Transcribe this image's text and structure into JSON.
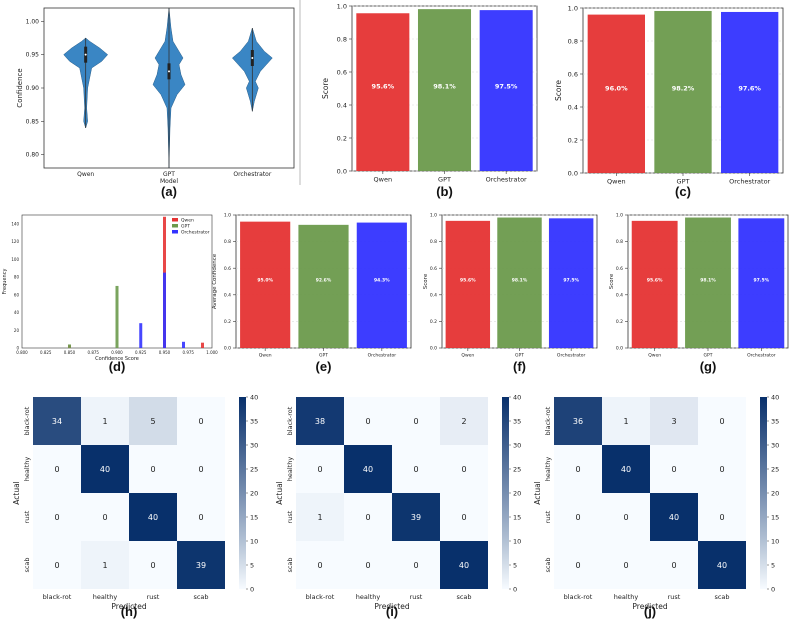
{
  "panels": {
    "a": {
      "label": "(a)",
      "chart_data": {
        "type": "violin",
        "categories": [
          "Qwen",
          "GPT",
          "Orchestrator"
        ],
        "xlabel": "Model",
        "ylabel": "Confidence",
        "ylim": [
          0.78,
          1.02
        ],
        "yticks": [
          "0.80",
          "0.85",
          "0.90",
          "0.95",
          "1.00"
        ],
        "medians": [
          0.95,
          0.925,
          0.945
        ],
        "ranges": [
          [
            0.84,
            0.975
          ],
          [
            0.78,
            1.02
          ],
          [
            0.865,
            0.99
          ]
        ]
      }
    },
    "b": {
      "label": "(b)",
      "chart_data": {
        "type": "bar",
        "categories": [
          "Qwen",
          "GPT",
          "Orchestrator"
        ],
        "values": [
          0.956,
          0.981,
          0.975
        ],
        "data_labels": [
          "95.6%",
          "98.1%",
          "97.5%"
        ],
        "colors": [
          "#e53333",
          "#6c9a4c",
          "#3333ff"
        ],
        "ylabel": "Score",
        "ylim": [
          0,
          1.0
        ],
        "yticks": [
          "0.0",
          "0.2",
          "0.4",
          "0.6",
          "0.8",
          "1.0"
        ]
      }
    },
    "c": {
      "label": "(c)",
      "chart_data": {
        "type": "bar",
        "categories": [
          "Qwen",
          "GPT",
          "Orchestrator"
        ],
        "values": [
          0.96,
          0.982,
          0.976
        ],
        "data_labels": [
          "96.0%",
          "98.2%",
          "97.6%"
        ],
        "colors": [
          "#e53333",
          "#6c9a4c",
          "#3333ff"
        ],
        "ylabel": "Score",
        "ylim": [
          0,
          1.0
        ],
        "yticks": [
          "0.0",
          "0.2",
          "0.4",
          "0.6",
          "0.8",
          "1.0"
        ]
      }
    },
    "d": {
      "label": "(d)",
      "chart_data": {
        "type": "histogram",
        "xlabel": "Confidence Score",
        "ylabel": "Frequency",
        "xlim": [
          0.8,
          1.0
        ],
        "ylim": [
          0,
          150
        ],
        "xticks": [
          "0.800",
          "0.825",
          "0.850",
          "0.875",
          "0.900",
          "0.925",
          "0.950",
          "0.975",
          "1.000"
        ],
        "yticks": [
          "0",
          "20",
          "40",
          "60",
          "80",
          "100",
          "120",
          "140"
        ],
        "series": [
          {
            "name": "Qwen",
            "color": "#e53333",
            "x": [
              0.85,
              0.95,
              0.99
            ],
            "values": [
              3,
              148,
              6
            ]
          },
          {
            "name": "GPT",
            "color": "#6c9a4c",
            "x": [
              0.85,
              0.9
            ],
            "values": [
              4,
              70
            ]
          },
          {
            "name": "Orchestrator",
            "color": "#3333ff",
            "x": [
              0.925,
              0.95,
              0.97
            ],
            "values": [
              28,
              85,
              7
            ]
          }
        ]
      }
    },
    "e": {
      "label": "(e)",
      "chart_data": {
        "type": "bar",
        "categories": [
          "Qwen",
          "GPT",
          "Orchestrator"
        ],
        "values": [
          0.95,
          0.926,
          0.943
        ],
        "data_labels": [
          "95.0%",
          "92.6%",
          "94.3%"
        ],
        "colors": [
          "#e53333",
          "#6c9a4c",
          "#3333ff"
        ],
        "ylabel": "Average Confidence",
        "ylim": [
          0,
          1.0
        ],
        "yticks": [
          "0.0",
          "0.2",
          "0.4",
          "0.6",
          "0.8",
          "1.0"
        ]
      }
    },
    "f": {
      "label": "(f)",
      "chart_data": {
        "type": "bar",
        "categories": [
          "Qwen",
          "GPT",
          "Orchestrator"
        ],
        "values": [
          0.956,
          0.981,
          0.975
        ],
        "data_labels": [
          "95.6%",
          "98.1%",
          "97.5%"
        ],
        "colors": [
          "#e53333",
          "#6c9a4c",
          "#3333ff"
        ],
        "ylabel": "Score",
        "ylim": [
          0,
          1.0
        ],
        "yticks": [
          "0.0",
          "0.2",
          "0.4",
          "0.6",
          "0.8",
          "1.0"
        ]
      }
    },
    "g": {
      "label": "(g)",
      "chart_data": {
        "type": "bar",
        "categories": [
          "Qwen",
          "GPT",
          "Orchestrator"
        ],
        "values": [
          0.956,
          0.981,
          0.975
        ],
        "data_labels": [
          "95.6%",
          "98.1%",
          "97.5%"
        ],
        "colors": [
          "#e53333",
          "#6c9a4c",
          "#3333ff"
        ],
        "ylabel": "Score",
        "ylim": [
          0,
          1.0
        ],
        "yticks": [
          "0.0",
          "0.2",
          "0.4",
          "0.6",
          "0.8",
          "1.0"
        ]
      }
    },
    "h": {
      "label": "(h)",
      "chart_data": {
        "type": "heatmap",
        "xlabel": "Predicted",
        "ylabel": "Actual",
        "labels": [
          "black-rot",
          "healthy",
          "rust",
          "scab"
        ],
        "matrix": [
          [
            34,
            1,
            5,
            0
          ],
          [
            0,
            40,
            0,
            0
          ],
          [
            0,
            0,
            40,
            0
          ],
          [
            0,
            1,
            0,
            39
          ]
        ],
        "vmin": 0,
        "vmax": 40,
        "colorbar_ticks": [
          "0",
          "5",
          "10",
          "15",
          "20",
          "25",
          "30",
          "35",
          "40"
        ]
      }
    },
    "i": {
      "label": "(i)",
      "chart_data": {
        "type": "heatmap",
        "xlabel": "Predicted",
        "ylabel": "Actual",
        "labels": [
          "black-rot",
          "healthy",
          "rust",
          "scab"
        ],
        "matrix": [
          [
            38,
            0,
            0,
            2
          ],
          [
            0,
            40,
            0,
            0
          ],
          [
            1,
            0,
            39,
            0
          ],
          [
            0,
            0,
            0,
            40
          ]
        ],
        "vmin": 0,
        "vmax": 40,
        "colorbar_ticks": [
          "0",
          "5",
          "10",
          "15",
          "20",
          "25",
          "30",
          "35",
          "40"
        ]
      }
    },
    "j": {
      "label": "(j)",
      "chart_data": {
        "type": "heatmap",
        "xlabel": "Predicted",
        "ylabel": "Actual",
        "labels": [
          "black-rot",
          "healthy",
          "rust",
          "scab"
        ],
        "matrix": [
          [
            36,
            1,
            3,
            0
          ],
          [
            0,
            40,
            0,
            0
          ],
          [
            0,
            0,
            40,
            0
          ],
          [
            0,
            0,
            0,
            40
          ]
        ],
        "vmin": 0,
        "vmax": 40,
        "colorbar_ticks": [
          "0",
          "5",
          "10",
          "15",
          "20",
          "25",
          "30",
          "35",
          "40"
        ]
      }
    }
  }
}
